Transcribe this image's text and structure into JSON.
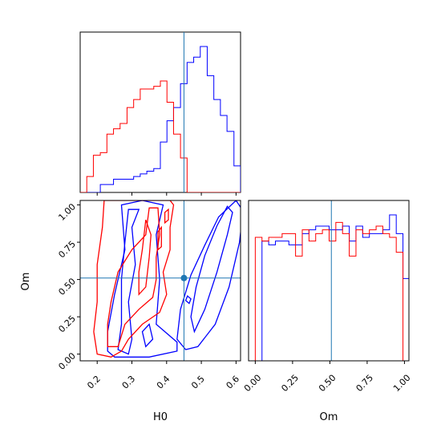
{
  "chart_data": [
    {
      "type": "histogram",
      "panel": "H0 marginal",
      "x_range": [
        0.151,
        0.613
      ],
      "truth": 0.45,
      "series": [
        {
          "color": "#0000ff",
          "bin_edges": [
            0.151,
            0.17,
            0.189,
            0.209,
            0.228,
            0.247,
            0.266,
            0.286,
            0.305,
            0.324,
            0.343,
            0.363,
            0.382,
            0.401,
            0.42,
            0.44,
            0.459,
            0.478,
            0.497,
            0.517,
            0.536,
            0.555,
            0.574,
            0.594,
            0.613
          ],
          "heights": [
            0,
            0,
            0,
            3,
            3,
            5,
            5,
            5,
            6,
            7,
            8,
            9,
            19,
            27,
            32,
            41,
            49,
            51,
            55,
            44,
            35,
            29,
            23,
            10
          ]
        },
        {
          "color": "#ff0000",
          "bin_edges": [
            0.151,
            0.17,
            0.189,
            0.209,
            0.228,
            0.247,
            0.266,
            0.286,
            0.305,
            0.324,
            0.343,
            0.363,
            0.382,
            0.401,
            0.42,
            0.44,
            0.459,
            0.478,
            0.497,
            0.517,
            0.536,
            0.555,
            0.574,
            0.594,
            0.613
          ],
          "heights": [
            0,
            6,
            14,
            15,
            22,
            24,
            26,
            32,
            35,
            39,
            39,
            40,
            42,
            34,
            22,
            13,
            0,
            0,
            0,
            0,
            0,
            0,
            0,
            0
          ]
        }
      ]
    },
    {
      "type": "contour",
      "panel": "Om vs H0",
      "xlabel": "H0",
      "ylabel": "Om",
      "x_range": [
        0.151,
        0.613
      ],
      "y_range": [
        -0.045,
        1.03
      ],
      "x_ticks": [
        0.2,
        0.3,
        0.4,
        0.5,
        0.6
      ],
      "y_ticks": [
        0.0,
        0.25,
        0.5,
        0.75,
        1.0
      ],
      "x_tick_labels": [
        "0.2",
        "0.3",
        "0.4",
        "0.5",
        "0.6"
      ],
      "y_tick_labels": [
        "0.00",
        "0.25",
        "0.50",
        "0.75",
        "1.00"
      ],
      "truth": {
        "H0": 0.45,
        "Om": 0.51
      },
      "series": [
        {
          "color": "#0000ff",
          "contours": [
            {
              "closed": true,
              "points": [
                [
                  0.455,
                  0.03
                ],
                [
                  0.49,
                  0.05
                ],
                [
                  0.54,
                  0.2
                ],
                [
                  0.58,
                  0.45
                ],
                [
                  0.61,
                  0.75
                ],
                [
                  0.62,
                  0.96
                ],
                [
                  0.6,
                  1.03
                ],
                [
                  0.55,
                  0.92
                ],
                [
                  0.51,
                  0.73
                ],
                [
                  0.47,
                  0.53
                ],
                [
                  0.44,
                  0.3
                ],
                [
                  0.43,
                  0.1
                ]
              ]
            },
            {
              "closed": true,
              "points": [
                [
                  0.48,
                  0.15
                ],
                [
                  0.51,
                  0.3
                ],
                [
                  0.545,
                  0.55
                ],
                [
                  0.575,
                  0.8
                ],
                [
                  0.59,
                  0.95
                ],
                [
                  0.575,
                  0.99
                ],
                [
                  0.545,
                  0.86
                ],
                [
                  0.51,
                  0.66
                ],
                [
                  0.485,
                  0.45
                ],
                [
                  0.47,
                  0.25
                ]
              ]
            },
            {
              "closed": true,
              "points": [
                [
                  0.455,
                  0.36
                ],
                [
                  0.465,
                  0.34
                ],
                [
                  0.47,
                  0.37
                ],
                [
                  0.46,
                  0.39
                ]
              ]
            },
            {
              "closed": true,
              "points": [
                [
                  0.23,
                  0.02
                ],
                [
                  0.25,
                  -0.02
                ],
                [
                  0.35,
                  -0.02
                ],
                [
                  0.43,
                  0.02
                ],
                [
                  0.43,
                  0.08
                ],
                [
                  0.37,
                  0.2
                ],
                [
                  0.38,
                  0.5
                ],
                [
                  0.37,
                  0.8
                ],
                [
                  0.39,
                  1.0
                ],
                [
                  0.33,
                  1.03
                ],
                [
                  0.27,
                  1.0
                ],
                [
                  0.28,
                  0.7
                ],
                [
                  0.25,
                  0.4
                ],
                [
                  0.23,
                  0.15
                ]
              ]
            },
            {
              "closed": true,
              "points": [
                [
                  0.26,
                  0.03
                ],
                [
                  0.29,
                  0.0
                ],
                [
                  0.3,
                  0.1
                ],
                [
                  0.29,
                  0.35
                ],
                [
                  0.31,
                  0.6
                ],
                [
                  0.3,
                  0.85
                ],
                [
                  0.32,
                  0.97
                ],
                [
                  0.29,
                  0.97
                ],
                [
                  0.28,
                  0.75
                ],
                [
                  0.27,
                  0.5
                ],
                [
                  0.27,
                  0.2
                ]
              ]
            },
            {
              "closed": true,
              "points": [
                [
                  0.34,
                  0.05
                ],
                [
                  0.36,
                  0.1
                ],
                [
                  0.35,
                  0.2
                ],
                [
                  0.33,
                  0.15
                ]
              ]
            }
          ]
        },
        {
          "color": "#ff0000",
          "contours": [
            {
              "closed": true,
              "points": [
                [
                  0.2,
                  0.0
                ],
                [
                  0.24,
                  -0.02
                ],
                [
                  0.27,
                  0.02
                ],
                [
                  0.29,
                  0.1
                ],
                [
                  0.33,
                  0.2
                ],
                [
                  0.38,
                  0.28
                ],
                [
                  0.4,
                  0.4
                ],
                [
                  0.39,
                  0.55
                ],
                [
                  0.41,
                  0.7
                ],
                [
                  0.41,
                  0.85
                ],
                [
                  0.42,
                  1.0
                ],
                [
                  0.41,
                  1.03
                ],
                [
                  0.22,
                  1.03
                ],
                [
                  0.215,
                  0.85
                ],
                [
                  0.2,
                  0.6
                ],
                [
                  0.2,
                  0.35
                ],
                [
                  0.19,
                  0.15
                ]
              ]
            },
            {
              "closed": true,
              "points": [
                [
                  0.23,
                  0.05
                ],
                [
                  0.26,
                  0.05
                ],
                [
                  0.28,
                  0.2
                ],
                [
                  0.32,
                  0.3
                ],
                [
                  0.36,
                  0.38
                ],
                [
                  0.37,
                  0.5
                ],
                [
                  0.37,
                  0.65
                ],
                [
                  0.38,
                  0.8
                ],
                [
                  0.375,
                  0.98
                ],
                [
                  0.35,
                  0.98
                ],
                [
                  0.34,
                  0.8
                ],
                [
                  0.3,
                  0.7
                ],
                [
                  0.26,
                  0.55
                ],
                [
                  0.24,
                  0.35
                ],
                [
                  0.23,
                  0.2
                ]
              ]
            },
            {
              "closed": true,
              "points": [
                [
                  0.32,
                  0.4
                ],
                [
                  0.34,
                  0.45
                ],
                [
                  0.35,
                  0.65
                ],
                [
                  0.355,
                  0.8
                ],
                [
                  0.34,
                  0.9
                ],
                [
                  0.33,
                  0.7
                ],
                [
                  0.32,
                  0.55
                ]
              ]
            },
            {
              "closed": true,
              "points": [
                [
                  0.375,
                  0.7
                ],
                [
                  0.385,
                  0.72
                ],
                [
                  0.385,
                  0.85
                ],
                [
                  0.375,
                  0.82
                ]
              ]
            },
            {
              "closed": true,
              "points": [
                [
                  0.395,
                  0.88
                ],
                [
                  0.405,
                  0.9
                ],
                [
                  0.405,
                  0.97
                ],
                [
                  0.395,
                  0.95
                ]
              ]
            }
          ]
        }
      ]
    },
    {
      "type": "histogram",
      "panel": "Om marginal",
      "xlabel": "Om",
      "x_range": [
        -0.045,
        1.03
      ],
      "x_ticks": [
        0.0,
        0.25,
        0.5,
        0.75,
        1.0
      ],
      "x_tick_labels": [
        "0.00",
        "0.25",
        "0.50",
        "0.75",
        "1.00"
      ],
      "truth": 0.51,
      "series": [
        {
          "color": "#0000ff",
          "bin_edges": [
            -0.045,
            0.0,
            0.045,
            0.09,
            0.135,
            0.18,
            0.225,
            0.27,
            0.315,
            0.36,
            0.405,
            0.45,
            0.495,
            0.54,
            0.585,
            0.63,
            0.675,
            0.72,
            0.765,
            0.81,
            0.855,
            0.9,
            0.945,
            0.99,
            1.03
          ],
          "heights": [
            0,
            0,
            32,
            31,
            32,
            32,
            31,
            31,
            34,
            35,
            36,
            36,
            35,
            35,
            36,
            32,
            36,
            33,
            34,
            34,
            35,
            39,
            34,
            22
          ]
        },
        {
          "color": "#ff0000",
          "bin_edges": [
            -0.045,
            0.0,
            0.045,
            0.09,
            0.135,
            0.18,
            0.225,
            0.27,
            0.315,
            0.36,
            0.405,
            0.45,
            0.495,
            0.54,
            0.585,
            0.63,
            0.675,
            0.72,
            0.765,
            0.81,
            0.855,
            0.9,
            0.945,
            0.99,
            1.03
          ],
          "heights": [
            0,
            33,
            32,
            33,
            33,
            34,
            34,
            28,
            35,
            32,
            34,
            35,
            32,
            37,
            34,
            28,
            35,
            34,
            35,
            36,
            34,
            33,
            29,
            0
          ]
        }
      ]
    }
  ],
  "colors": {
    "series_1": "#0000ff",
    "series_2": "#ff0000",
    "truth": "#1f77b4"
  }
}
